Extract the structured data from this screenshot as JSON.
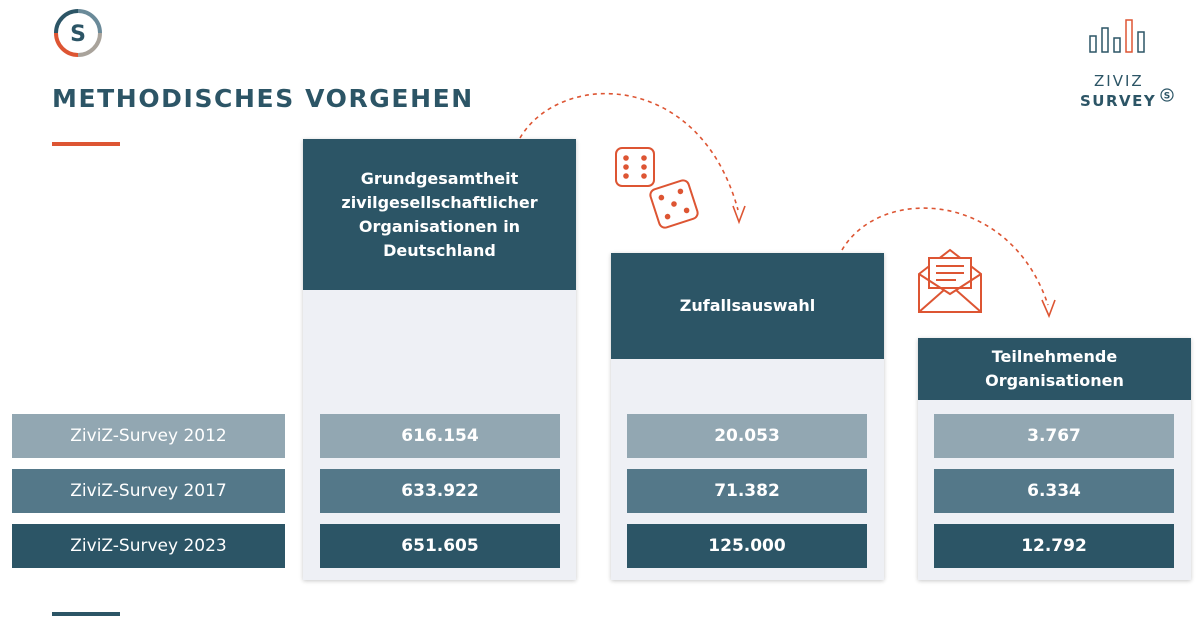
{
  "page_title": "METHODISCHES VORGEHEN",
  "brand": {
    "line1": "ZIVIZ",
    "line2": "SURVEY",
    "mark": "S"
  },
  "colors": {
    "primary": "#2c5566",
    "accent": "#dd5533",
    "row_light": "#92a7b2",
    "row_mid": "#547889",
    "row_dark": "#2c5566",
    "panel": "#eef0f5"
  },
  "icons": {
    "logo": "s-circle-logo",
    "dice": "dice-icon",
    "mail": "envelope-letter-icon",
    "brand_bars": "bar-chart-icon"
  },
  "rows": [
    "ZiviZ-Survey 2012",
    "ZiviZ-Survey 2017",
    "ZiviZ-Survey 2023"
  ],
  "columns": [
    {
      "title": "Grundgesamtheit zivilgesellschaftlicher Organisationen in Deutschland",
      "values": [
        "616.154",
        "633.922",
        "651.605"
      ]
    },
    {
      "title": "Zufallsauswahl",
      "values": [
        "20.053",
        "71.382",
        "125.000"
      ]
    },
    {
      "title": "Teilnehmende Organisationen",
      "values": [
        "3.767",
        "6.334",
        "12.792"
      ]
    }
  ]
}
